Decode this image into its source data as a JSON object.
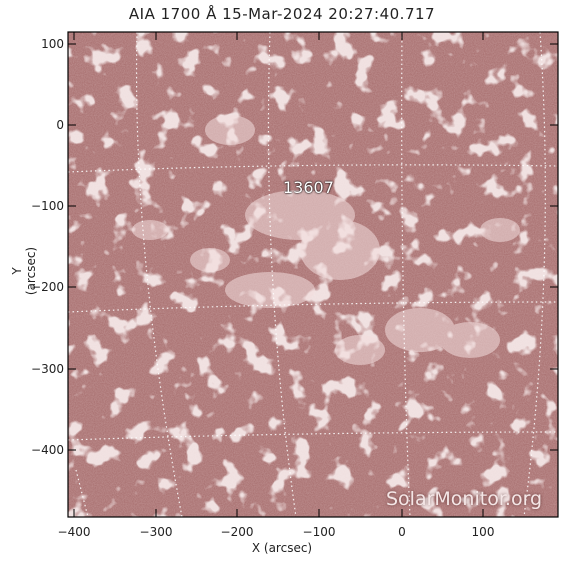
{
  "figure": {
    "title": "AIA 1700 Å 15-Mar-2024 20:27:40.717",
    "xlabel": "X (arcsec)",
    "ylabel": "Y (arcsec)",
    "yticks": [
      "100",
      "0",
      "−100",
      "−200",
      "−300",
      "−400"
    ],
    "xticks": [
      "−400",
      "−300",
      "−200",
      "−100",
      "0",
      "100"
    ],
    "active_region": "13607",
    "watermark": "SolarMonitor.org"
  },
  "colors": {
    "background": "#a56b6b",
    "bright": "#f6e4e4",
    "frame": "#000000"
  }
}
